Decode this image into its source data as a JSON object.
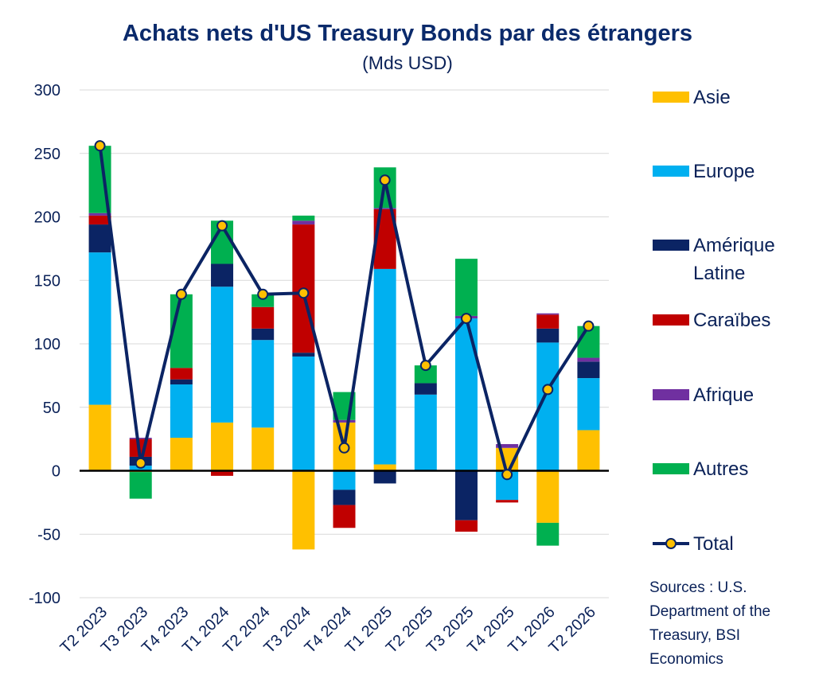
{
  "chart_data": {
    "type": "bar",
    "title": "Achats nets d'US Treasury Bonds par des étrangers",
    "subtitle": "(Mds USD)",
    "categories": [
      "T2 2023",
      "T3 2023",
      "T4 2023",
      "T1 2024",
      "T2 2024",
      "T3 2024",
      "T4 2024",
      "T1 2025",
      "T2 2025",
      "T3 2025",
      "T4 2025",
      "T1 2026",
      "T2 2026"
    ],
    "ylim": [
      -100,
      300
    ],
    "yticks": [
      300,
      250,
      200,
      150,
      100,
      50,
      0,
      -50,
      -100
    ],
    "grid": true,
    "legend_position": "right",
    "series": [
      {
        "name": "Asie",
        "color": "#ffc000",
        "values": [
          52,
          -1,
          26,
          38,
          34,
          -62,
          38,
          5,
          0,
          0,
          18,
          -41,
          32
        ]
      },
      {
        "name": "Europe",
        "color": "#00b0f0",
        "values": [
          120,
          4,
          42,
          107,
          69,
          90,
          -15,
          154,
          60,
          120,
          -23,
          101,
          41
        ]
      },
      {
        "name": "Amérique Latine",
        "color": "#0b2464",
        "values": [
          22,
          7,
          4,
          18,
          9,
          3,
          -12,
          -10,
          9,
          -39,
          0,
          11,
          13
        ]
      },
      {
        "name": "Caraïbes",
        "color": "#c00000",
        "values": [
          7,
          14,
          9,
          -4,
          17,
          101,
          -18,
          47,
          0,
          -9,
          -2,
          11,
          0
        ]
      },
      {
        "name": "Afrique",
        "color": "#7030a0",
        "values": [
          2,
          1,
          0,
          0,
          0,
          3,
          2,
          1,
          0,
          2,
          3,
          1,
          3
        ]
      },
      {
        "name": "Autres",
        "color": "#00b050",
        "values": [
          53,
          -21,
          58,
          34,
          10,
          4,
          22,
          32,
          14,
          45,
          0,
          -18,
          25
        ]
      }
    ],
    "total": {
      "name": "Total",
      "line_color": "#0b2464",
      "marker_color": "#ffc000",
      "values": [
        256,
        6,
        139,
        193,
        139,
        140,
        18,
        229,
        83,
        120,
        -3,
        64,
        114
      ]
    }
  },
  "source_text": "Sources : U.S. Department of the Treasury, BSI Economics"
}
